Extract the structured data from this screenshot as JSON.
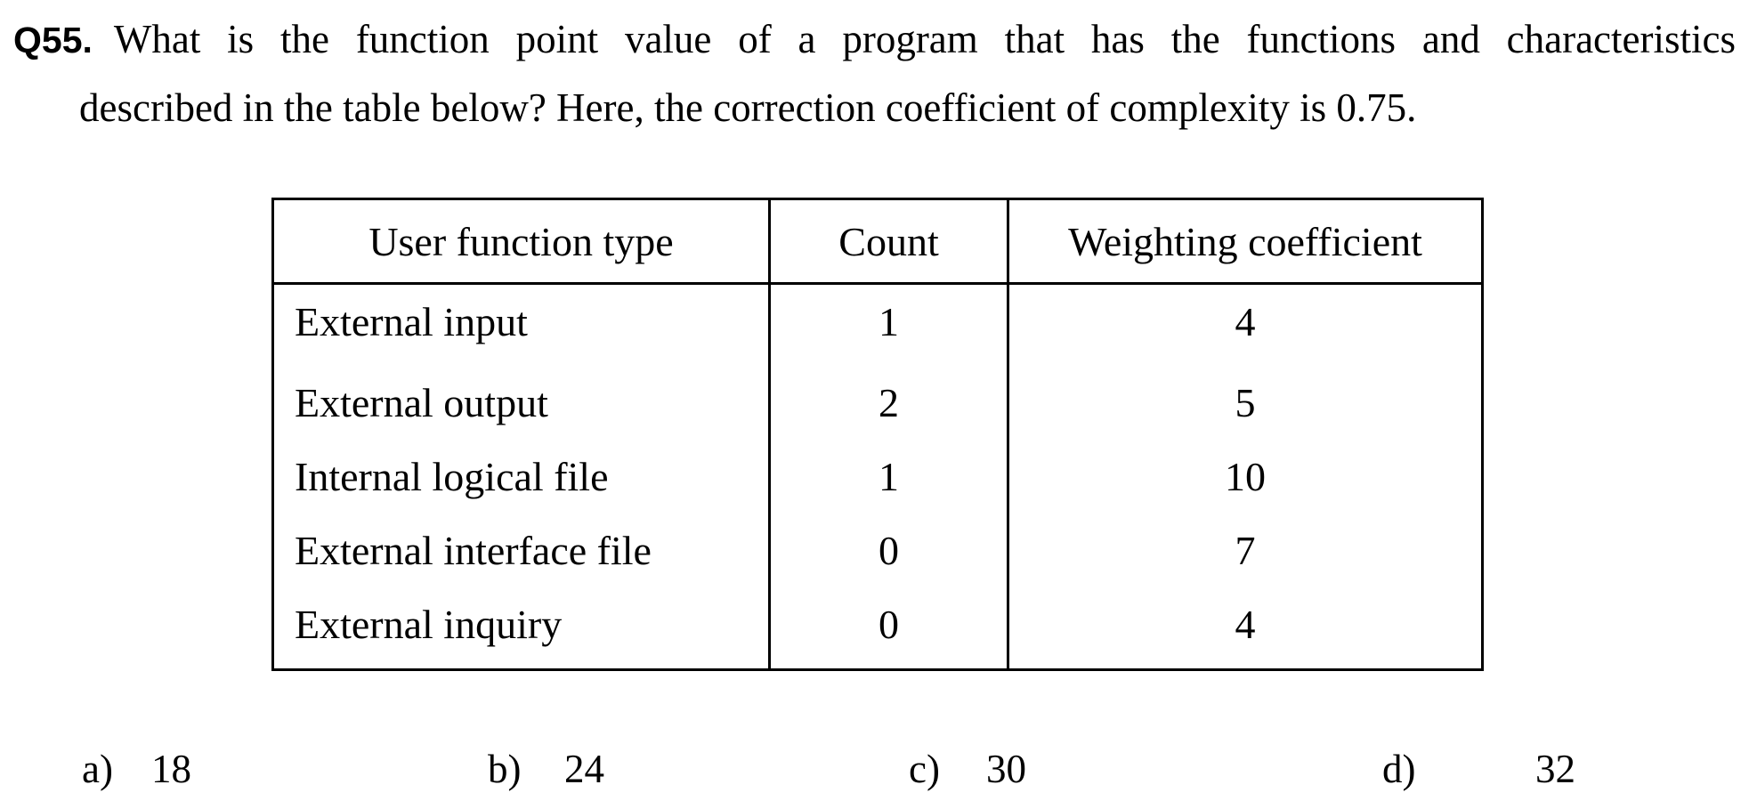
{
  "question": {
    "number": "Q55.",
    "text_line1": "What is the function point value of a program that has the functions and characteristics",
    "text_line2": "described in the table below? Here, the correction coefficient of complexity is 0.75."
  },
  "table": {
    "headers": [
      "User function type",
      "Count",
      "Weighting coefficient"
    ],
    "rows": [
      [
        "External input",
        "1",
        "4"
      ],
      [
        "External output",
        "2",
        "5"
      ],
      [
        "Internal logical file",
        "1",
        "10"
      ],
      [
        "External interface file",
        "0",
        "7"
      ],
      [
        "External inquiry",
        "0",
        "4"
      ]
    ]
  },
  "options": [
    {
      "letter": "a)",
      "value": "18"
    },
    {
      "letter": "b)",
      "value": "24"
    },
    {
      "letter": "c)",
      "value": "30"
    },
    {
      "letter": "d)",
      "value": "32"
    }
  ]
}
